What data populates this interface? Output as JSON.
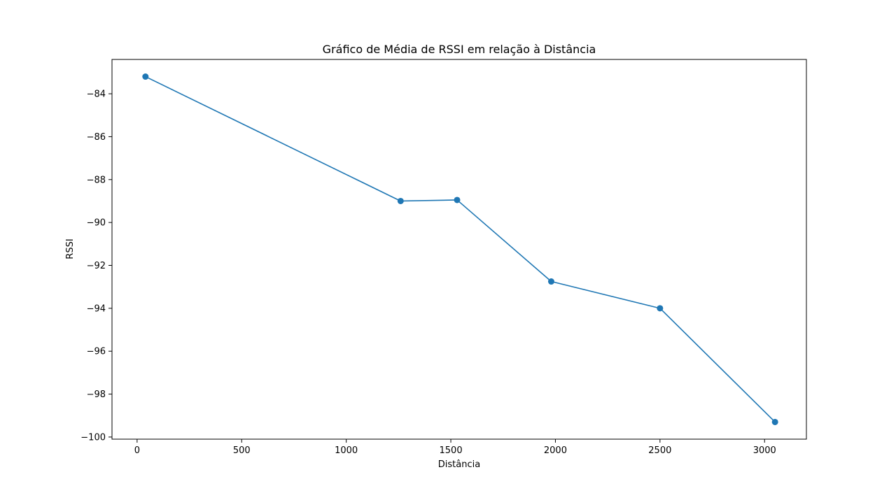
{
  "chart_data": {
    "type": "line",
    "title": "Gráfico de Média de RSSI em relação à Distância",
    "xlabel": "Distância",
    "ylabel": "RSSI",
    "xlim": [
      -120,
      3200
    ],
    "ylim": [
      -100.1,
      -82.4
    ],
    "xticks": [
      0,
      500,
      1000,
      1500,
      2000,
      2500,
      3000
    ],
    "yticks": [
      -84,
      -86,
      -88,
      -90,
      -92,
      -94,
      -96,
      -98,
      -100
    ],
    "xtick_labels": [
      "0",
      "500",
      "1000",
      "1500",
      "2000",
      "2500",
      "3000"
    ],
    "ytick_labels": [
      "−84",
      "−86",
      "−88",
      "−90",
      "−92",
      "−94",
      "−96",
      "−98",
      "−100"
    ],
    "grid": false,
    "series": [
      {
        "color": "#1f77b4",
        "marker": "circle",
        "x": [
          40,
          1260,
          1530,
          1980,
          2500,
          3050
        ],
        "y": [
          -83.2,
          -89.0,
          -88.95,
          -92.75,
          -94.0,
          -99.3
        ]
      }
    ]
  }
}
